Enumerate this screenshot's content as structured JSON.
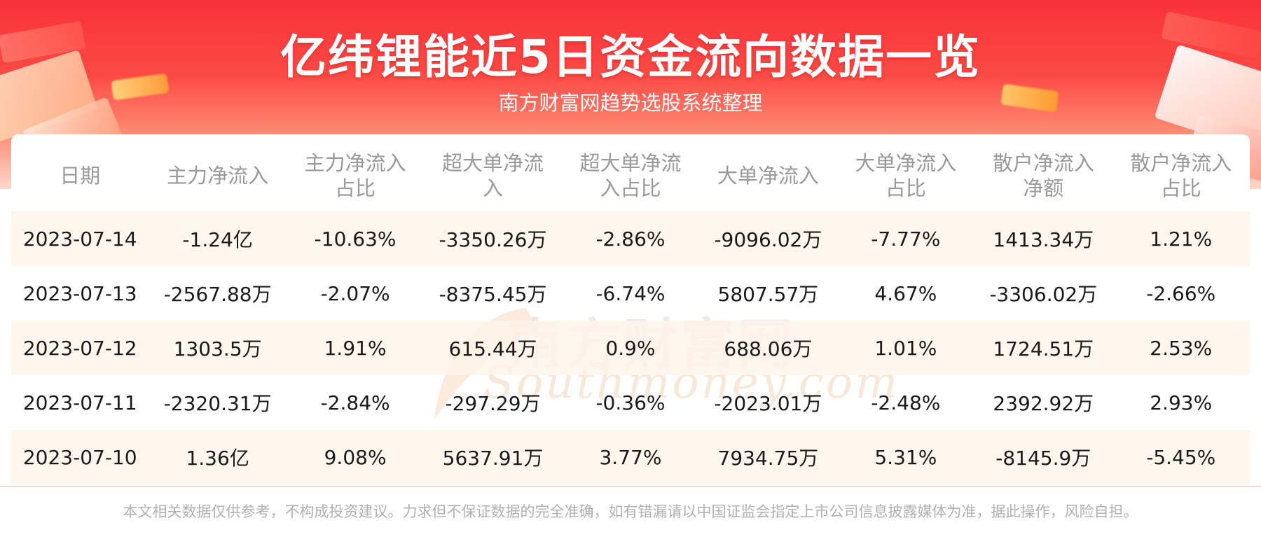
{
  "header": {
    "title": "亿纬锂能近5日资金流向数据一览",
    "subtitle": "南方财富网趋势选股系统整理"
  },
  "watermark": {
    "cn": "南方财富网",
    "en": "Southmoney.com"
  },
  "table": {
    "headers": [
      [
        "日期"
      ],
      [
        "主力净流入"
      ],
      [
        "主力净流入",
        "占比"
      ],
      [
        "超大单净流",
        "入"
      ],
      [
        "超大单净流",
        "入占比"
      ],
      [
        "大单净流入"
      ],
      [
        "大单净流入",
        "占比"
      ],
      [
        "散户净流入",
        "净额"
      ],
      [
        "散户净流入",
        "占比"
      ]
    ],
    "rows": [
      [
        "2023-07-14",
        "-1.24亿",
        "-10.63%",
        "-3350.26万",
        "-2.86%",
        "-9096.02万",
        "-7.77%",
        "1413.34万",
        "1.21%"
      ],
      [
        "2023-07-13",
        "-2567.88万",
        "-2.07%",
        "-8375.45万",
        "-6.74%",
        "5807.57万",
        "4.67%",
        "-3306.02万",
        "-2.66%"
      ],
      [
        "2023-07-12",
        "1303.5万",
        "1.91%",
        "615.44万",
        "0.9%",
        "688.06万",
        "1.01%",
        "1724.51万",
        "2.53%"
      ],
      [
        "2023-07-11",
        "-2320.31万",
        "-2.84%",
        "-297.29万",
        "-0.36%",
        "-2023.01万",
        "-2.48%",
        "2392.92万",
        "2.93%"
      ],
      [
        "2023-07-10",
        "1.36亿",
        "9.08%",
        "5637.91万",
        "3.77%",
        "7934.75万",
        "5.31%",
        "-8145.9万",
        "-5.45%"
      ]
    ]
  },
  "footer": {
    "disclaimer": "本文相关数据仅供参考，不构成投资建议。力求但不保证数据的完全准确，如有错漏请以中国证监会指定上市公司信息披露媒体为准，据此操作，风险自担。"
  },
  "colors": {
    "banner_red": "#f8323a",
    "header_text": "#999999",
    "row_stripe": "#fff4ea",
    "footer_text": "#b0b0b0"
  }
}
